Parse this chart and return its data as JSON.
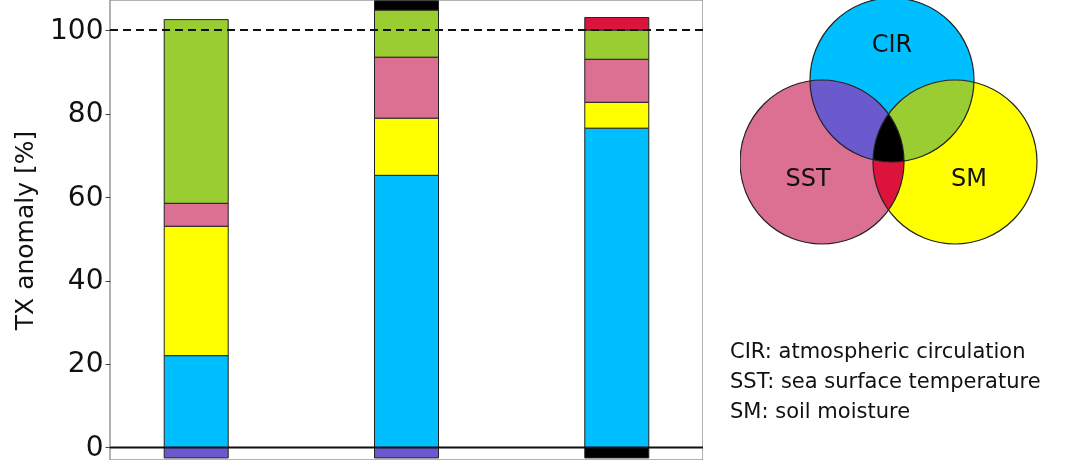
{
  "chart_data": {
    "type": "bar",
    "stacked": true,
    "ylabel": "TX anomaly [%]",
    "categories": [
      null,
      null,
      null
    ],
    "series": [
      {
        "color": "#00bfff",
        "values": [
          22,
          65.2,
          76.5
        ]
      },
      {
        "color": "#ffff00",
        "values": [
          31,
          13.7,
          6.2
        ]
      },
      {
        "color": "#db7093",
        "values": [
          5.5,
          14.6,
          10.3
        ]
      },
      {
        "color": "#9acd32",
        "values": [
          44,
          11.3,
          7
        ]
      },
      {
        "color": "#dc143c",
        "values": [
          null,
          null,
          3
        ]
      },
      {
        "color": "#000000",
        "values": [
          null,
          2.2,
          -2.5
        ]
      },
      {
        "color": "#6a5acd",
        "values": [
          -2.5,
          -2.5,
          null
        ]
      }
    ],
    "ylim": [
      -3,
      107.2
    ],
    "yticks": [
      0,
      20,
      40,
      60,
      80,
      100
    ],
    "tick_labels": "y",
    "grid": false,
    "ref_lines": [
      {
        "axis": "y",
        "value": 100,
        "line_style": "dashed"
      },
      {
        "axis": "y",
        "value": 0,
        "line_style": "solid"
      }
    ],
    "annotations": [
      "CIR",
      "SST",
      "SM",
      "CIR: atmospheric circulation",
      "SST: sea surface temperature",
      "SM: soil moisture"
    ]
  }
}
